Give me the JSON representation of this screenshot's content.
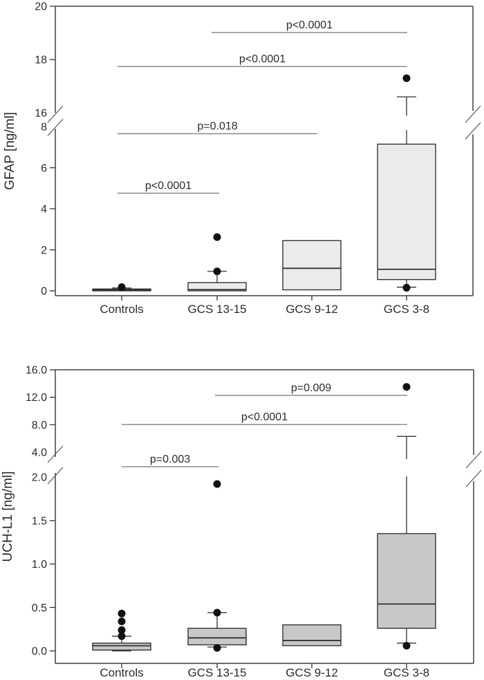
{
  "figure": {
    "background": "#ffffff",
    "frame_color": "#3f3f3f",
    "box_stroke": "#333333",
    "dot_color": "#111111",
    "sig_line_color": "#8a8a8a"
  },
  "chart_data": [
    {
      "type": "boxplot",
      "panel": "top",
      "title": "",
      "ylabel": "GFAP [ng/ml]",
      "xlabel": "",
      "box_fill": "#ebebeb",
      "categories": [
        "Controls",
        "GCS 13-15",
        "GCS 9-12",
        "GCS 3-8"
      ],
      "ylim": [
        0,
        20
      ],
      "axis_break": {
        "lower_max": 8,
        "upper_min": 16
      },
      "yticks_lower": [
        "0",
        "2",
        "4",
        "6",
        "8"
      ],
      "yticks_upper": [
        "16",
        "18",
        "20"
      ],
      "grid": false,
      "boxes": [
        {
          "category": "Controls",
          "q1": 0.0,
          "median": 0.04,
          "q3": 0.09,
          "whisker_low": null,
          "whisker_high": 0.14,
          "outliers": [
            0.18
          ]
        },
        {
          "category": "GCS 13-15",
          "q1": 0.0,
          "median": 0.06,
          "q3": 0.4,
          "whisker_low": null,
          "whisker_high": 0.95,
          "outliers": [
            0.95,
            2.62
          ]
        },
        {
          "category": "GCS 9-12",
          "q1": 0.05,
          "median": 1.1,
          "q3": 2.45,
          "whisker_low": null,
          "whisker_high": null,
          "outliers": []
        },
        {
          "category": "GCS 3-8",
          "q1": 0.55,
          "median": 1.05,
          "q3": 7.15,
          "whisker_low": 0.18,
          "whisker_high": 16.6,
          "outliers": [
            0.15,
            17.3
          ]
        }
      ],
      "significance": [
        {
          "groups": [
            0,
            1
          ],
          "label": "p<0.0001"
        },
        {
          "groups": [
            0,
            2
          ],
          "label": "p=0.018"
        },
        {
          "groups": [
            0,
            3
          ],
          "label": "p<0.0001"
        },
        {
          "groups": [
            1,
            3
          ],
          "label": "p<0.0001"
        }
      ]
    },
    {
      "type": "boxplot",
      "panel": "bottom",
      "title": "",
      "ylabel": "UCH-L1 [ng/ml]",
      "xlabel": "",
      "box_fill": "#c8c8c8",
      "categories": [
        "Controls",
        "GCS 13-15",
        "GCS 9-12",
        "GCS 3-8"
      ],
      "ylim": [
        0,
        16
      ],
      "axis_break": {
        "lower_max": 2,
        "upper_min": 4
      },
      "yticks_lower": [
        "0.0",
        "0.5",
        "1.0",
        "1.5",
        "2.0"
      ],
      "yticks_upper": [
        "4.0",
        "8.0",
        "12.0",
        "16.0"
      ],
      "grid": false,
      "boxes": [
        {
          "category": "Controls",
          "q1": 0.01,
          "median": 0.06,
          "q3": 0.09,
          "whisker_low": 0.0,
          "whisker_high": 0.17,
          "outliers": [
            0.17,
            0.24,
            0.34,
            0.43
          ]
        },
        {
          "category": "GCS 13-15",
          "q1": 0.07,
          "median": 0.15,
          "q3": 0.26,
          "whisker_low": 0.045,
          "whisker_high": 0.44,
          "outliers": [
            0.44,
            0.035,
            1.92
          ]
        },
        {
          "category": "GCS 9-12",
          "q1": 0.06,
          "median": 0.12,
          "q3": 0.3,
          "whisker_low": null,
          "whisker_high": null,
          "outliers": []
        },
        {
          "category": "GCS 3-8",
          "q1": 0.26,
          "median": 0.54,
          "q3": 1.35,
          "whisker_low": 0.09,
          "whisker_high": 6.3,
          "outliers": [
            0.06,
            13.5
          ]
        }
      ],
      "significance": [
        {
          "groups": [
            0,
            1
          ],
          "label": "p=0.003"
        },
        {
          "groups": [
            0,
            3
          ],
          "label": "p<0.0001"
        },
        {
          "groups": [
            1,
            3
          ],
          "label": "p=0.009"
        }
      ]
    }
  ]
}
